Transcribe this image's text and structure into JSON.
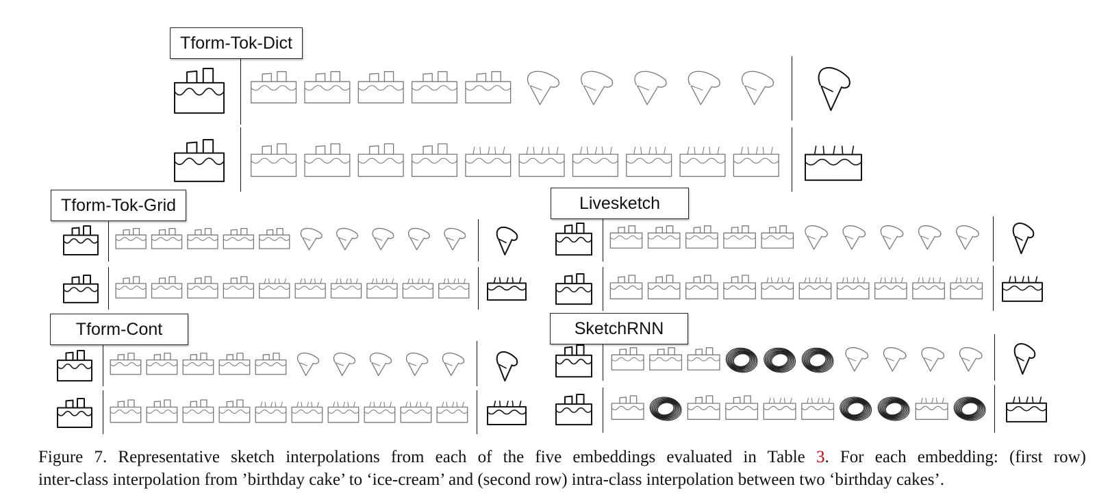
{
  "panels": {
    "tok_dict": {
      "title": "Tform-Tok-Dict"
    },
    "tok_grid": {
      "title": "Tform-Tok-Grid"
    },
    "livesketch": {
      "title": "Livesketch"
    },
    "cont": {
      "title": "Tform-Cont"
    },
    "sketchrnn": {
      "title": "SketchRNN"
    }
  },
  "caption": {
    "line1_prefix": "Figure 7. Representative sketch interpolations from each of the five embeddings evaluated in Table ",
    "table_ref": "3",
    "line1_suffix": ".  For each embedding: (first row)",
    "line2": "inter-class interpolation from ’birthday cake’ to ‘ice-cream’ and (second row) intra-class interpolation between two ‘birthday cakes’."
  },
  "colors": {
    "ref": "#cc0000",
    "stroke": "#111111",
    "light_stroke": "#777777"
  },
  "icons": [
    "birthday-cake-sketch",
    "ice-cream-sketch",
    "interpolated-sketch"
  ]
}
